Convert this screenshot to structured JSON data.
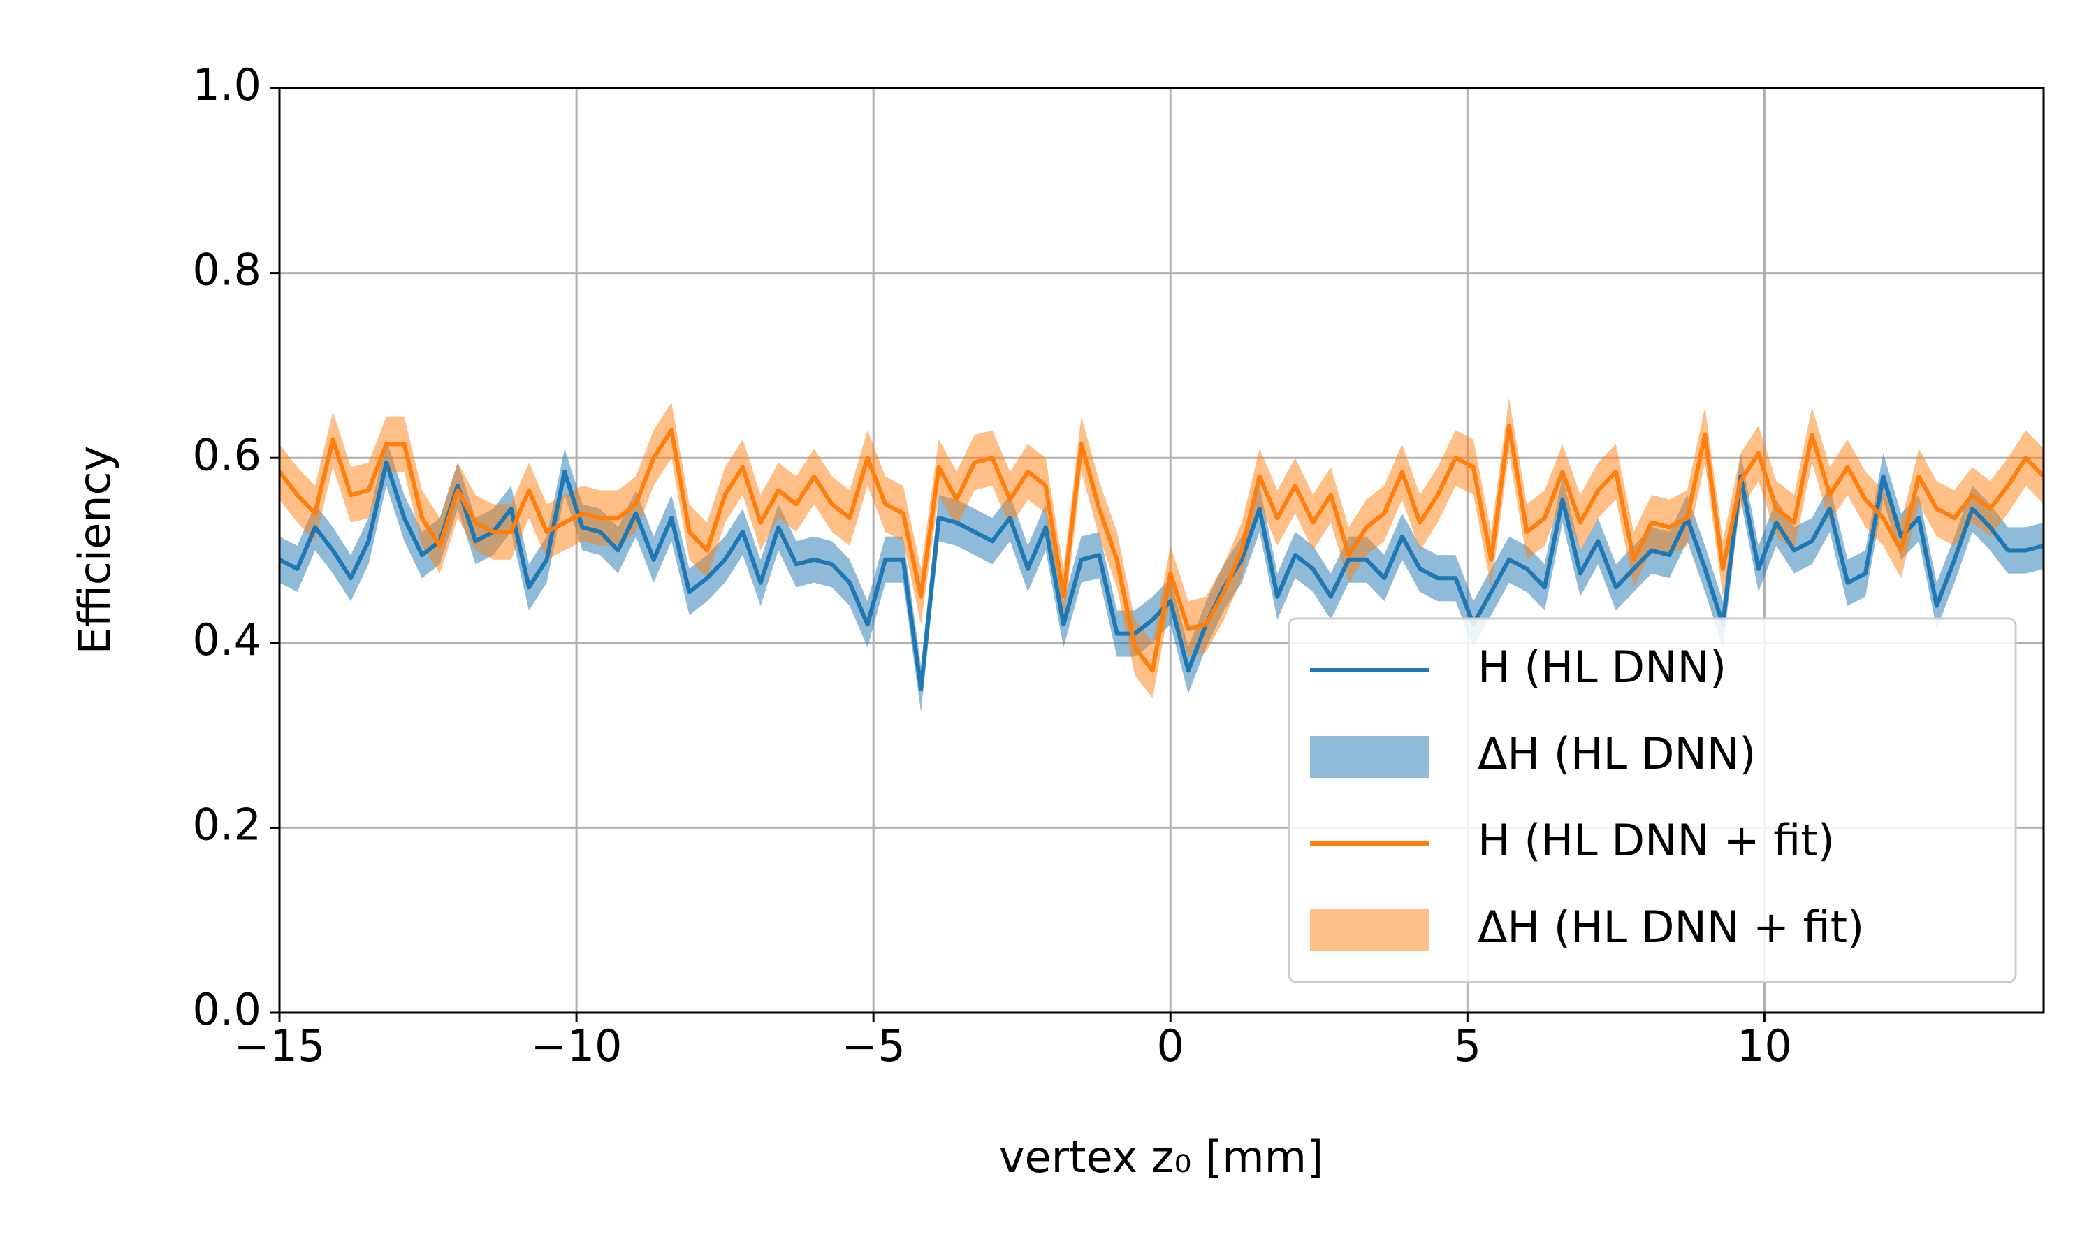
{
  "chart_data": {
    "type": "line",
    "xlabel": "vertex z₀ [mm]",
    "ylabel": "Efficiency",
    "x": [
      -15,
      -14.7,
      -14.4,
      -14.1,
      -13.8,
      -13.5,
      -13.2,
      -12.9,
      -12.6,
      -12.3,
      -12,
      -11.7,
      -11.4,
      -11.1,
      -10.8,
      -10.5,
      -10.2,
      -9.9,
      -9.6,
      -9.3,
      -9,
      -8.7,
      -8.4,
      -8.1,
      -7.8,
      -7.5,
      -7.2,
      -6.9,
      -6.6,
      -6.3,
      -6,
      -5.7,
      -5.4,
      -5.1,
      -4.8,
      -4.5,
      -4.2,
      -3.9,
      -3.6,
      -3.3,
      -3,
      -2.7,
      -2.4,
      -2.1,
      -1.8,
      -1.5,
      -1.2,
      -0.9,
      -0.6,
      -0.3,
      0,
      0.3,
      0.6,
      0.9,
      1.2,
      1.5,
      1.8,
      2.1,
      2.4,
      2.7,
      3,
      3.3,
      3.6,
      3.9,
      4.2,
      4.5,
      4.8,
      5.1,
      5.4,
      5.7,
      6,
      6.3,
      6.6,
      6.9,
      7.2,
      7.5,
      7.8,
      8.1,
      8.4,
      8.7,
      9,
      9.3,
      9.6,
      9.9,
      10.2,
      10.5,
      10.8,
      11.1,
      11.4,
      11.7,
      12,
      12.3,
      12.6,
      12.9,
      13.2,
      13.5,
      13.8,
      14.1,
      14.4,
      14.7
    ],
    "series": [
      {
        "name": "H (HL DNN)",
        "band_name": "ΔH (HL DNN)",
        "color": "#1f77b4",
        "error": 0.025,
        "values": [
          0.49,
          0.48,
          0.525,
          0.5,
          0.47,
          0.51,
          0.595,
          0.535,
          0.495,
          0.51,
          0.57,
          0.51,
          0.52,
          0.545,
          0.46,
          0.49,
          0.585,
          0.525,
          0.52,
          0.5,
          0.54,
          0.49,
          0.535,
          0.455,
          0.47,
          0.49,
          0.52,
          0.465,
          0.525,
          0.485,
          0.49,
          0.485,
          0.465,
          0.42,
          0.49,
          0.49,
          0.35,
          0.535,
          0.53,
          0.52,
          0.51,
          0.535,
          0.48,
          0.525,
          0.42,
          0.49,
          0.495,
          0.41,
          0.41,
          0.425,
          0.445,
          0.37,
          0.42,
          0.46,
          0.49,
          0.545,
          0.45,
          0.495,
          0.48,
          0.45,
          0.49,
          0.49,
          0.47,
          0.515,
          0.48,
          0.47,
          0.47,
          0.42,
          0.455,
          0.49,
          0.48,
          0.46,
          0.555,
          0.475,
          0.51,
          0.46,
          0.48,
          0.5,
          0.495,
          0.535,
          0.48,
          0.42,
          0.58,
          0.48,
          0.53,
          0.5,
          0.51,
          0.545,
          0.465,
          0.475,
          0.58,
          0.515,
          0.535,
          0.44,
          0.49,
          0.545,
          0.525,
          0.5,
          0.5,
          0.505
        ]
      },
      {
        "name": "H (HL DNN + fit)",
        "band_name": "ΔH (HL DNN + fit)",
        "color": "#ff7f0e",
        "error": 0.03,
        "values": [
          0.585,
          0.56,
          0.54,
          0.62,
          0.56,
          0.565,
          0.615,
          0.615,
          0.535,
          0.505,
          0.565,
          0.53,
          0.52,
          0.52,
          0.565,
          0.52,
          0.53,
          0.54,
          0.535,
          0.535,
          0.55,
          0.6,
          0.63,
          0.52,
          0.5,
          0.56,
          0.59,
          0.53,
          0.565,
          0.55,
          0.58,
          0.55,
          0.535,
          0.6,
          0.55,
          0.54,
          0.45,
          0.59,
          0.555,
          0.595,
          0.6,
          0.555,
          0.585,
          0.57,
          0.45,
          0.615,
          0.545,
          0.49,
          0.395,
          0.37,
          0.475,
          0.415,
          0.42,
          0.455,
          0.5,
          0.58,
          0.535,
          0.57,
          0.53,
          0.56,
          0.495,
          0.525,
          0.54,
          0.585,
          0.53,
          0.56,
          0.6,
          0.59,
          0.49,
          0.635,
          0.52,
          0.535,
          0.585,
          0.53,
          0.565,
          0.585,
          0.49,
          0.53,
          0.525,
          0.535,
          0.625,
          0.48,
          0.575,
          0.605,
          0.545,
          0.53,
          0.625,
          0.56,
          0.59,
          0.555,
          0.535,
          0.5,
          0.58,
          0.545,
          0.535,
          0.56,
          0.545,
          0.57,
          0.6,
          0.58
        ]
      }
    ],
    "xlim": [
      -15,
      14.7
    ],
    "xticks": [
      {
        "value": -15,
        "label": "−15"
      },
      {
        "value": -10,
        "label": "−10"
      },
      {
        "value": -5,
        "label": "−5"
      },
      0,
      5,
      10
    ],
    "ylim": [
      0,
      1
    ],
    "yticks": [
      {
        "value": 0,
        "label": "0.0"
      },
      0.2,
      0.4,
      0.6,
      0.8,
      {
        "value": 1,
        "label": "1.0"
      }
    ],
    "grid": true,
    "legend": "lower right"
  }
}
